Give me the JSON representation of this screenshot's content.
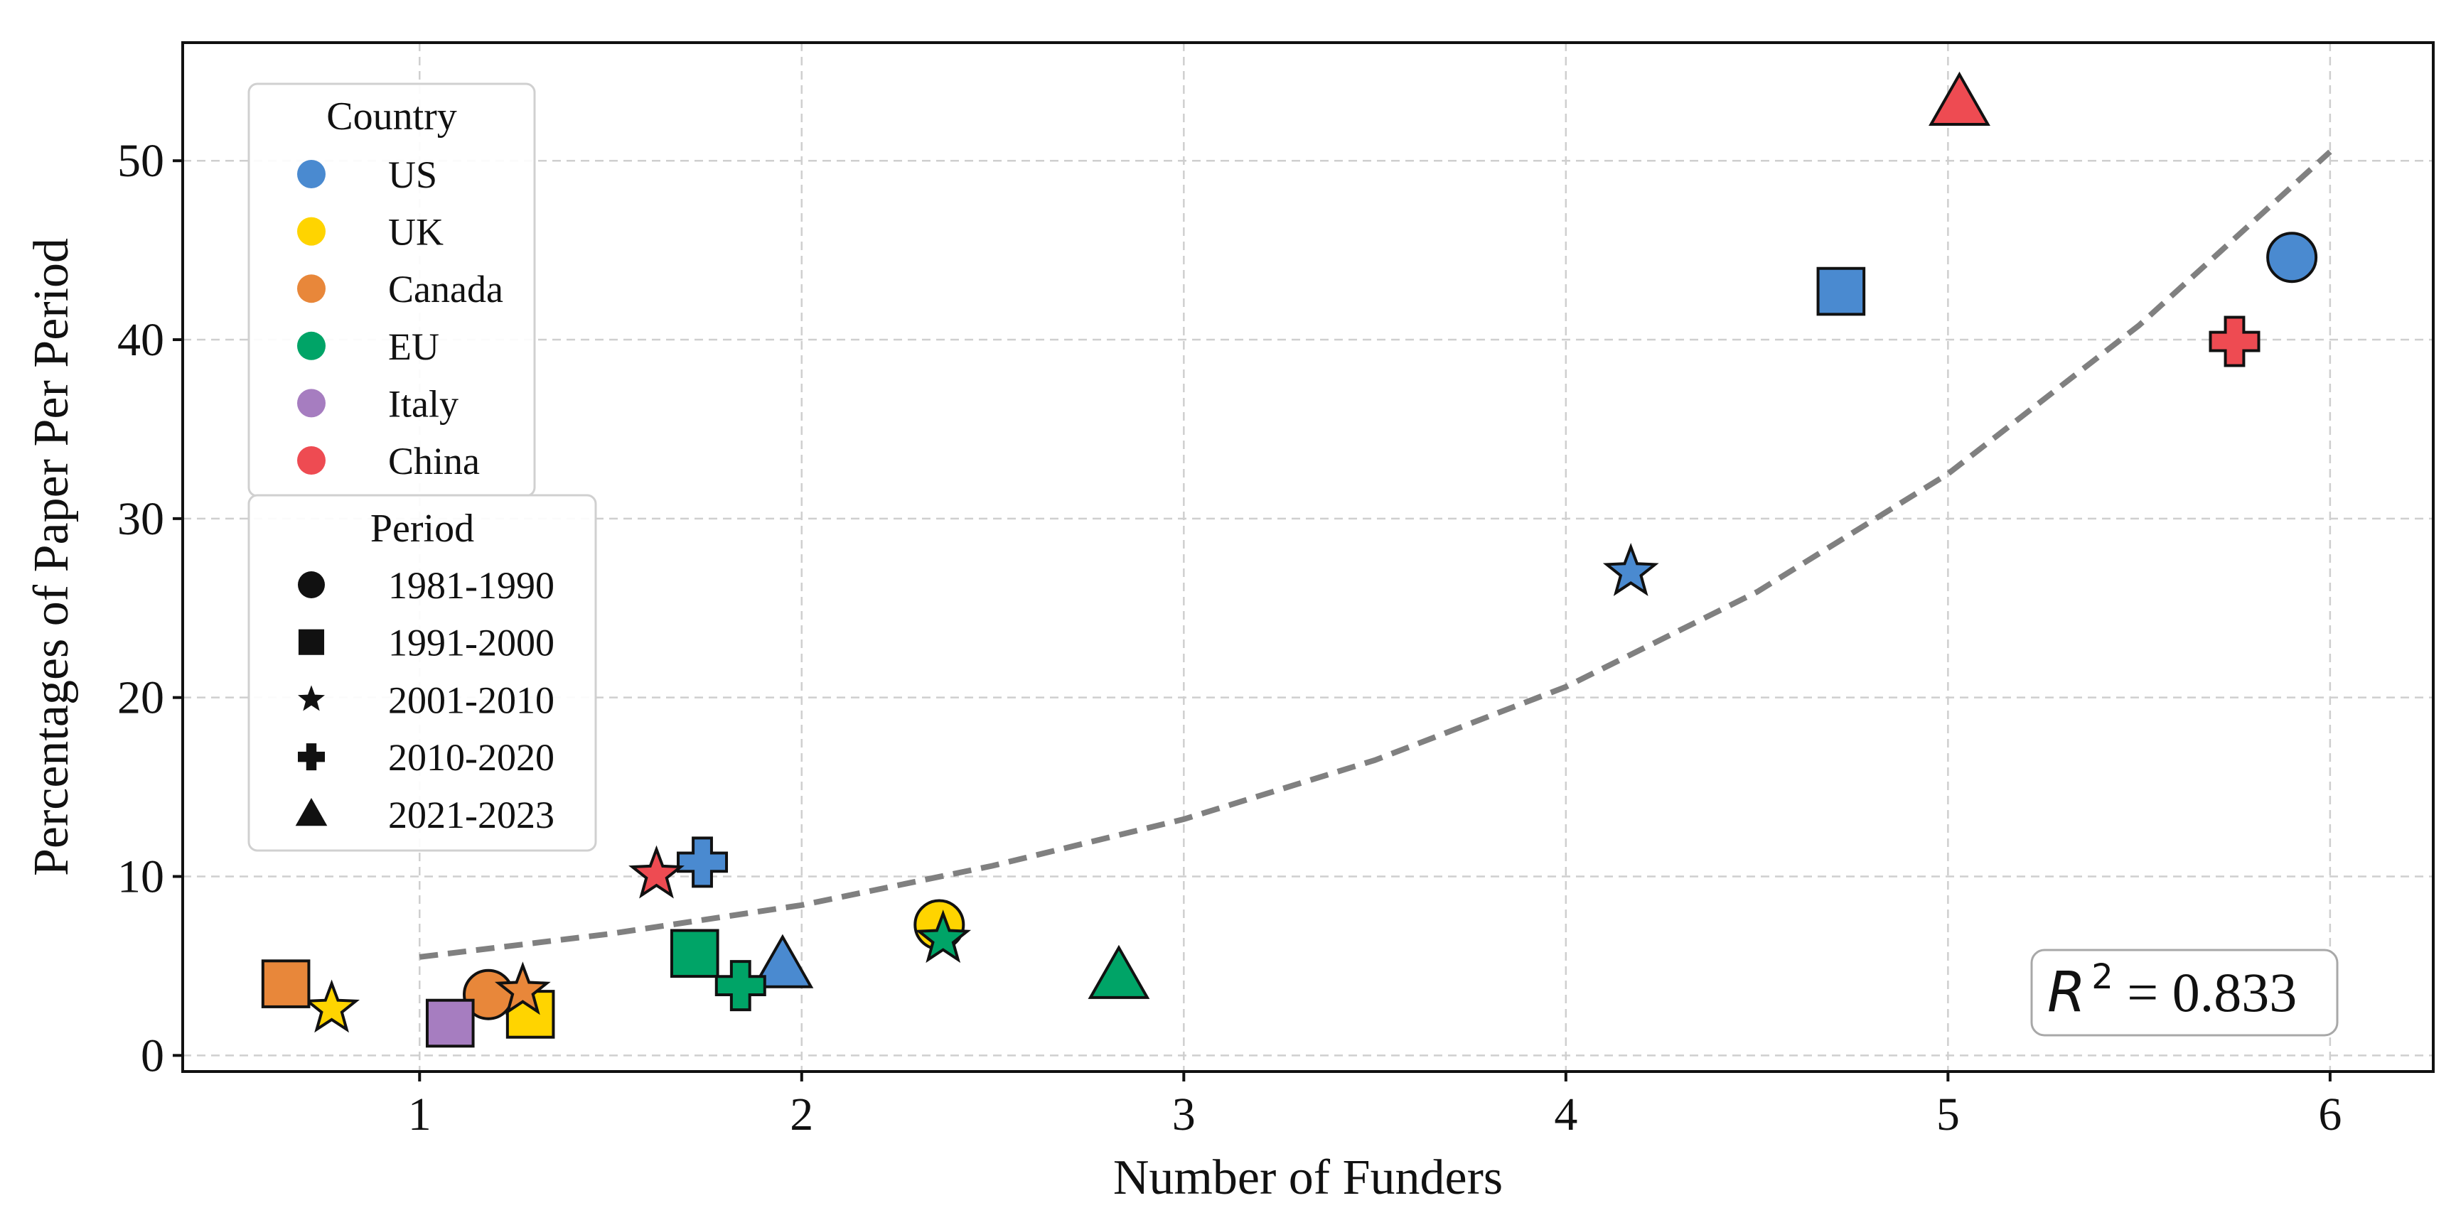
{
  "chart_data": {
    "type": "scatter",
    "xlabel": "Number of Funders",
    "ylabel": "Percentages of Paper Per Period",
    "xlim": [
      0.38,
      6.27
    ],
    "ylim": [
      -0.9,
      56.6
    ],
    "xticks": [
      1,
      2,
      3,
      4,
      5,
      6
    ],
    "yticks": [
      0,
      10,
      20,
      30,
      40,
      50
    ],
    "grid": true,
    "legend_placement": "upper-left",
    "countries": [
      {
        "name": "US",
        "color": "#4a8ad0"
      },
      {
        "name": "UK",
        "color": "#ffd400"
      },
      {
        "name": "Canada",
        "color": "#e8873a"
      },
      {
        "name": "EU",
        "color": "#00a467"
      },
      {
        "name": "Italy",
        "color": "#a67dc0"
      },
      {
        "name": "China",
        "color": "#ee4b52"
      }
    ],
    "periods": [
      {
        "name": "1981-1990",
        "marker": "circle"
      },
      {
        "name": "1991-2000",
        "marker": "square"
      },
      {
        "name": "2001-2010",
        "marker": "star"
      },
      {
        "name": "2010-2020",
        "marker": "plus"
      },
      {
        "name": "2021-2023",
        "marker": "triangle"
      }
    ],
    "points": [
      {
        "country": "US",
        "period": "1981-1990",
        "x": 5.9,
        "y": 44.6
      },
      {
        "country": "US",
        "period": "1991-2000",
        "x": 4.72,
        "y": 42.7
      },
      {
        "country": "US",
        "period": "2001-2010",
        "x": 4.17,
        "y": 27.0
      },
      {
        "country": "US",
        "period": "2010-2020",
        "x": 1.74,
        "y": 10.8
      },
      {
        "country": "US",
        "period": "2021-2023",
        "x": 1.95,
        "y": 5.0
      },
      {
        "country": "UK",
        "period": "1981-1990",
        "x": 2.36,
        "y": 7.3
      },
      {
        "country": "UK",
        "period": "1991-2000",
        "x": 1.29,
        "y": 2.3
      },
      {
        "country": "UK",
        "period": "2001-2010",
        "x": 0.77,
        "y": 2.6
      },
      {
        "country": "Canada",
        "period": "1981-1990",
        "x": 1.18,
        "y": 3.4
      },
      {
        "country": "Canada",
        "period": "1991-2000",
        "x": 0.65,
        "y": 4.0
      },
      {
        "country": "Canada",
        "period": "2001-2010",
        "x": 1.27,
        "y": 3.6
      },
      {
        "country": "EU",
        "period": "1991-2000",
        "x": 1.72,
        "y": 5.7
      },
      {
        "country": "EU",
        "period": "2001-2010",
        "x": 2.37,
        "y": 6.5
      },
      {
        "country": "EU",
        "period": "2010-2020",
        "x": 1.84,
        "y": 3.9
      },
      {
        "country": "EU",
        "period": "2021-2023",
        "x": 2.83,
        "y": 4.4
      },
      {
        "country": "Italy",
        "period": "1991-2000",
        "x": 1.08,
        "y": 1.8
      },
      {
        "country": "China",
        "period": "2001-2010",
        "x": 1.62,
        "y": 10.1
      },
      {
        "country": "China",
        "period": "2010-2020",
        "x": 5.75,
        "y": 39.9
      },
      {
        "country": "China",
        "period": "2021-2023",
        "x": 5.03,
        "y": 53.2
      }
    ],
    "fit_curve": {
      "style": "dashed",
      "color": "#808080",
      "x": [
        1.0,
        1.5,
        2.0,
        2.5,
        3.0,
        3.5,
        4.0,
        4.5,
        5.0,
        5.5,
        6.0
      ],
      "y": [
        5.5,
        6.8,
        8.4,
        10.6,
        13.2,
        16.5,
        20.6,
        25.9,
        32.5,
        40.8,
        50.5
      ]
    },
    "annotation": {
      "text_prefix": "R",
      "exponent": "2",
      "text_suffix": " = 0.833"
    }
  },
  "legend": {
    "country_title": "Country",
    "period_title": "Period"
  }
}
